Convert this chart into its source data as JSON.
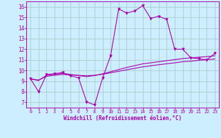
{
  "background_color": "#cceeff",
  "grid_color": "#aacccc",
  "line_color": "#aa00aa",
  "xlabel": "Windchill (Refroidissement éolien,°C)",
  "xlim": [
    -0.5,
    23.5
  ],
  "ylim": [
    6.5,
    16.5
  ],
  "yticks": [
    7,
    8,
    9,
    10,
    11,
    12,
    13,
    14,
    15,
    16
  ],
  "xticks": [
    0,
    1,
    2,
    3,
    4,
    5,
    6,
    7,
    8,
    9,
    10,
    11,
    12,
    13,
    14,
    15,
    16,
    17,
    18,
    19,
    20,
    21,
    22,
    23
  ],
  "series1_x": [
    0,
    1,
    2,
    3,
    4,
    5,
    6,
    7,
    8,
    9,
    10,
    11,
    12,
    13,
    14,
    15,
    16,
    17,
    18,
    19,
    20,
    21,
    22,
    23
  ],
  "series1_y": [
    9.2,
    8.0,
    9.6,
    9.7,
    9.8,
    9.5,
    9.3,
    7.05,
    6.75,
    9.3,
    11.4,
    15.8,
    15.4,
    15.6,
    16.1,
    14.9,
    15.1,
    14.8,
    12.0,
    12.0,
    11.2,
    11.1,
    11.0,
    11.6
  ],
  "series2_x": [
    0,
    1,
    2,
    3,
    4,
    5,
    6,
    7,
    8,
    9,
    10,
    11,
    12,
    13,
    14,
    15,
    16,
    17,
    18,
    19,
    20,
    21,
    22,
    23
  ],
  "series2_y": [
    9.2,
    9.05,
    9.55,
    9.65,
    9.72,
    9.62,
    9.52,
    9.42,
    9.52,
    9.68,
    9.88,
    10.08,
    10.28,
    10.45,
    10.62,
    10.72,
    10.82,
    10.92,
    11.02,
    11.12,
    11.18,
    11.25,
    11.3,
    11.38
  ],
  "series3_x": [
    0,
    1,
    2,
    3,
    4,
    5,
    6,
    7,
    8,
    9,
    10,
    11,
    12,
    13,
    14,
    15,
    16,
    17,
    18,
    19,
    20,
    21,
    22,
    23
  ],
  "series3_y": [
    9.2,
    9.1,
    9.45,
    9.55,
    9.62,
    9.58,
    9.54,
    9.5,
    9.55,
    9.64,
    9.78,
    9.92,
    10.06,
    10.2,
    10.34,
    10.44,
    10.54,
    10.63,
    10.72,
    10.82,
    10.87,
    10.95,
    11.01,
    11.08
  ]
}
